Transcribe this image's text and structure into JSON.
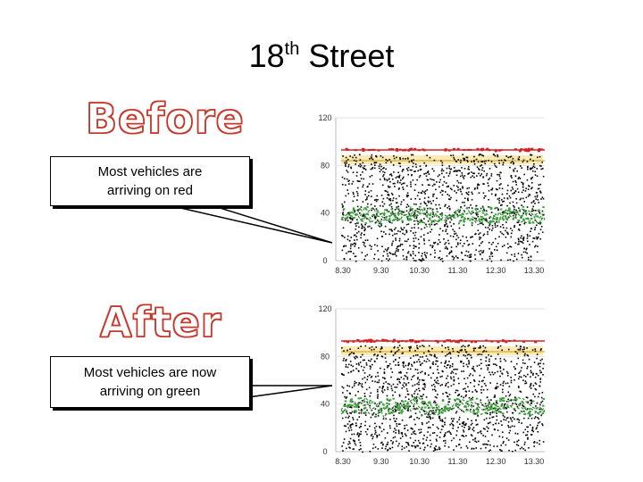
{
  "title": {
    "main": "18",
    "sup": "th",
    "rest": " Street"
  },
  "labels": {
    "before": "Before",
    "after": "After"
  },
  "callouts": {
    "before": "Most vehicles are arriving on red",
    "after": "Most vehicles are now arriving on green"
  },
  "colors": {
    "label_red": "#c0392b",
    "callout_border": "#000000",
    "green_line": "#2e8b2e",
    "red_line": "#d62020",
    "yellow_band": "#f3d04a",
    "points": "#000000"
  },
  "chart_data": [
    {
      "type": "scatter",
      "name": "before",
      "ylim": [
        0,
        120
      ],
      "yticks": [
        "120",
        "80",
        "40",
        "0"
      ],
      "xticks": [
        "8.30",
        "9.30",
        "10.30",
        "11.30",
        "12.30",
        "13.30"
      ],
      "grid": true,
      "bands": {
        "green_level": 40,
        "yellow_level": 84,
        "red_level": 93
      }
    },
    {
      "type": "scatter",
      "name": "after",
      "ylim": [
        0,
        120
      ],
      "yticks": [
        "120",
        "80",
        "40",
        "0"
      ],
      "xticks": [
        "8.30",
        "9.30",
        "10.30",
        "11.30",
        "12.30",
        "13.30"
      ],
      "grid": true,
      "bands": {
        "green_level": 40,
        "yellow_level": 84,
        "red_level": 93
      }
    }
  ]
}
